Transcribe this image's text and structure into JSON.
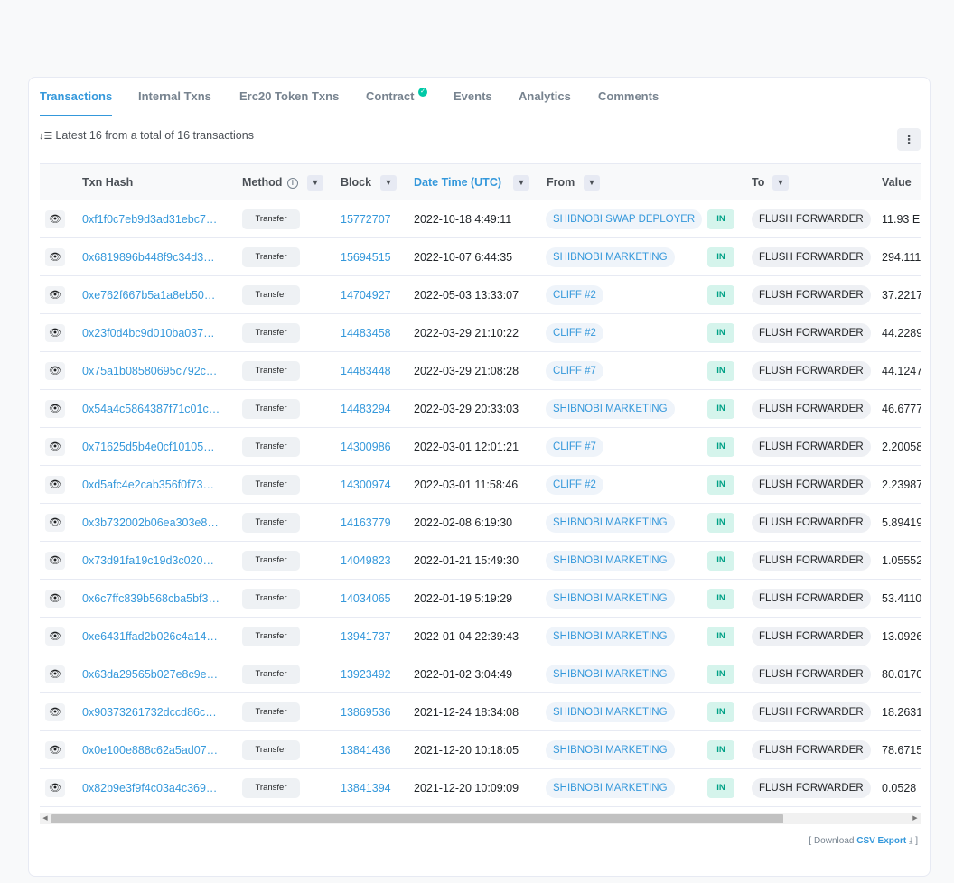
{
  "tabs": [
    {
      "label": "Transactions",
      "active": true
    },
    {
      "label": "Internal Txns"
    },
    {
      "label": "Erc20 Token Txns"
    },
    {
      "label": "Contract",
      "verified_icon": "check-circle-icon"
    },
    {
      "label": "Events"
    },
    {
      "label": "Analytics"
    },
    {
      "label": "Comments"
    }
  ],
  "summary": "Latest 16 from a total of 16 transactions",
  "more_icon": "⋮",
  "columns": {
    "hash": "Txn Hash",
    "method": "Method",
    "block": "Block",
    "date": "Date Time (UTC)",
    "from": "From",
    "to": "To",
    "value": "Value"
  },
  "rows": [
    {
      "hash": "0xf1f0c7eb9d3ad31ebc7…",
      "method": "Transfer",
      "block": "15772707",
      "date": "2022-10-18 4:49:11",
      "from": "SHIBNOBI SWAP DEPLOYER",
      "dir": "IN",
      "to": "FLUSH FORWARDER",
      "value": "11.93 E"
    },
    {
      "hash": "0x6819896b448f9c34d3…",
      "method": "Transfer",
      "block": "15694515",
      "date": "2022-10-07 6:44:35",
      "from": "SHIBNOBI MARKETING",
      "dir": "IN",
      "to": "FLUSH FORWARDER",
      "value": "294.111"
    },
    {
      "hash": "0xe762f667b5a1a8eb50…",
      "method": "Transfer",
      "block": "14704927",
      "date": "2022-05-03 13:33:07",
      "from": "CLIFF #2",
      "dir": "IN",
      "to": "FLUSH FORWARDER",
      "value": "37.2217"
    },
    {
      "hash": "0x23f0d4bc9d010ba037…",
      "method": "Transfer",
      "block": "14483458",
      "date": "2022-03-29 21:10:22",
      "from": "CLIFF #2",
      "dir": "IN",
      "to": "FLUSH FORWARDER",
      "value": "44.2289"
    },
    {
      "hash": "0x75a1b08580695c792c…",
      "method": "Transfer",
      "block": "14483448",
      "date": "2022-03-29 21:08:28",
      "from": "CLIFF #7",
      "dir": "IN",
      "to": "FLUSH FORWARDER",
      "value": "44.1247"
    },
    {
      "hash": "0x54a4c5864387f71c01c…",
      "method": "Transfer",
      "block": "14483294",
      "date": "2022-03-29 20:33:03",
      "from": "SHIBNOBI MARKETING",
      "dir": "IN",
      "to": "FLUSH FORWARDER",
      "value": "46.6777"
    },
    {
      "hash": "0x71625d5b4e0cf10105…",
      "method": "Transfer",
      "block": "14300986",
      "date": "2022-03-01 12:01:21",
      "from": "CLIFF #7",
      "dir": "IN",
      "to": "FLUSH FORWARDER",
      "value": "2.20058"
    },
    {
      "hash": "0xd5afc4e2cab356f0f73…",
      "method": "Transfer",
      "block": "14300974",
      "date": "2022-03-01 11:58:46",
      "from": "CLIFF #2",
      "dir": "IN",
      "to": "FLUSH FORWARDER",
      "value": "2.23987"
    },
    {
      "hash": "0x3b732002b06ea303e8…",
      "method": "Transfer",
      "block": "14163779",
      "date": "2022-02-08 6:19:30",
      "from": "SHIBNOBI MARKETING",
      "dir": "IN",
      "to": "FLUSH FORWARDER",
      "value": "5.89419"
    },
    {
      "hash": "0x73d91fa19c19d3c020…",
      "method": "Transfer",
      "block": "14049823",
      "date": "2022-01-21 15:49:30",
      "from": "SHIBNOBI MARKETING",
      "dir": "IN",
      "to": "FLUSH FORWARDER",
      "value": "1.05552"
    },
    {
      "hash": "0x6c7ffc839b568cba5bf3…",
      "method": "Transfer",
      "block": "14034065",
      "date": "2022-01-19 5:19:29",
      "from": "SHIBNOBI MARKETING",
      "dir": "IN",
      "to": "FLUSH FORWARDER",
      "value": "53.4110"
    },
    {
      "hash": "0xe6431ffad2b026c4a14…",
      "method": "Transfer",
      "block": "13941737",
      "date": "2022-01-04 22:39:43",
      "from": "SHIBNOBI MARKETING",
      "dir": "IN",
      "to": "FLUSH FORWARDER",
      "value": "13.0926"
    },
    {
      "hash": "0x63da29565b027e8c9e…",
      "method": "Transfer",
      "block": "13923492",
      "date": "2022-01-02 3:04:49",
      "from": "SHIBNOBI MARKETING",
      "dir": "IN",
      "to": "FLUSH FORWARDER",
      "value": "80.0170"
    },
    {
      "hash": "0x90373261732dccd86c…",
      "method": "Transfer",
      "block": "13869536",
      "date": "2021-12-24 18:34:08",
      "from": "SHIBNOBI MARKETING",
      "dir": "IN",
      "to": "FLUSH FORWARDER",
      "value": "18.2631"
    },
    {
      "hash": "0x0e100e888c62a5ad07…",
      "method": "Transfer",
      "block": "13841436",
      "date": "2021-12-20 10:18:05",
      "from": "SHIBNOBI MARKETING",
      "dir": "IN",
      "to": "FLUSH FORWARDER",
      "value": "78.6715"
    },
    {
      "hash": "0x82b9e3f9f4c03a4c369…",
      "method": "Transfer",
      "block": "13841394",
      "date": "2021-12-20 10:09:09",
      "from": "SHIBNOBI MARKETING",
      "dir": "IN",
      "to": "FLUSH FORWARDER",
      "value": "0.0528"
    }
  ],
  "footer": {
    "open": "[ Download ",
    "csv": "CSV Export",
    "close": " ]"
  },
  "colors": {
    "accent": "#3498db",
    "in_badge_bg": "#d5f4ec",
    "in_badge_text": "#00a186",
    "verified": "#00c9a7"
  }
}
